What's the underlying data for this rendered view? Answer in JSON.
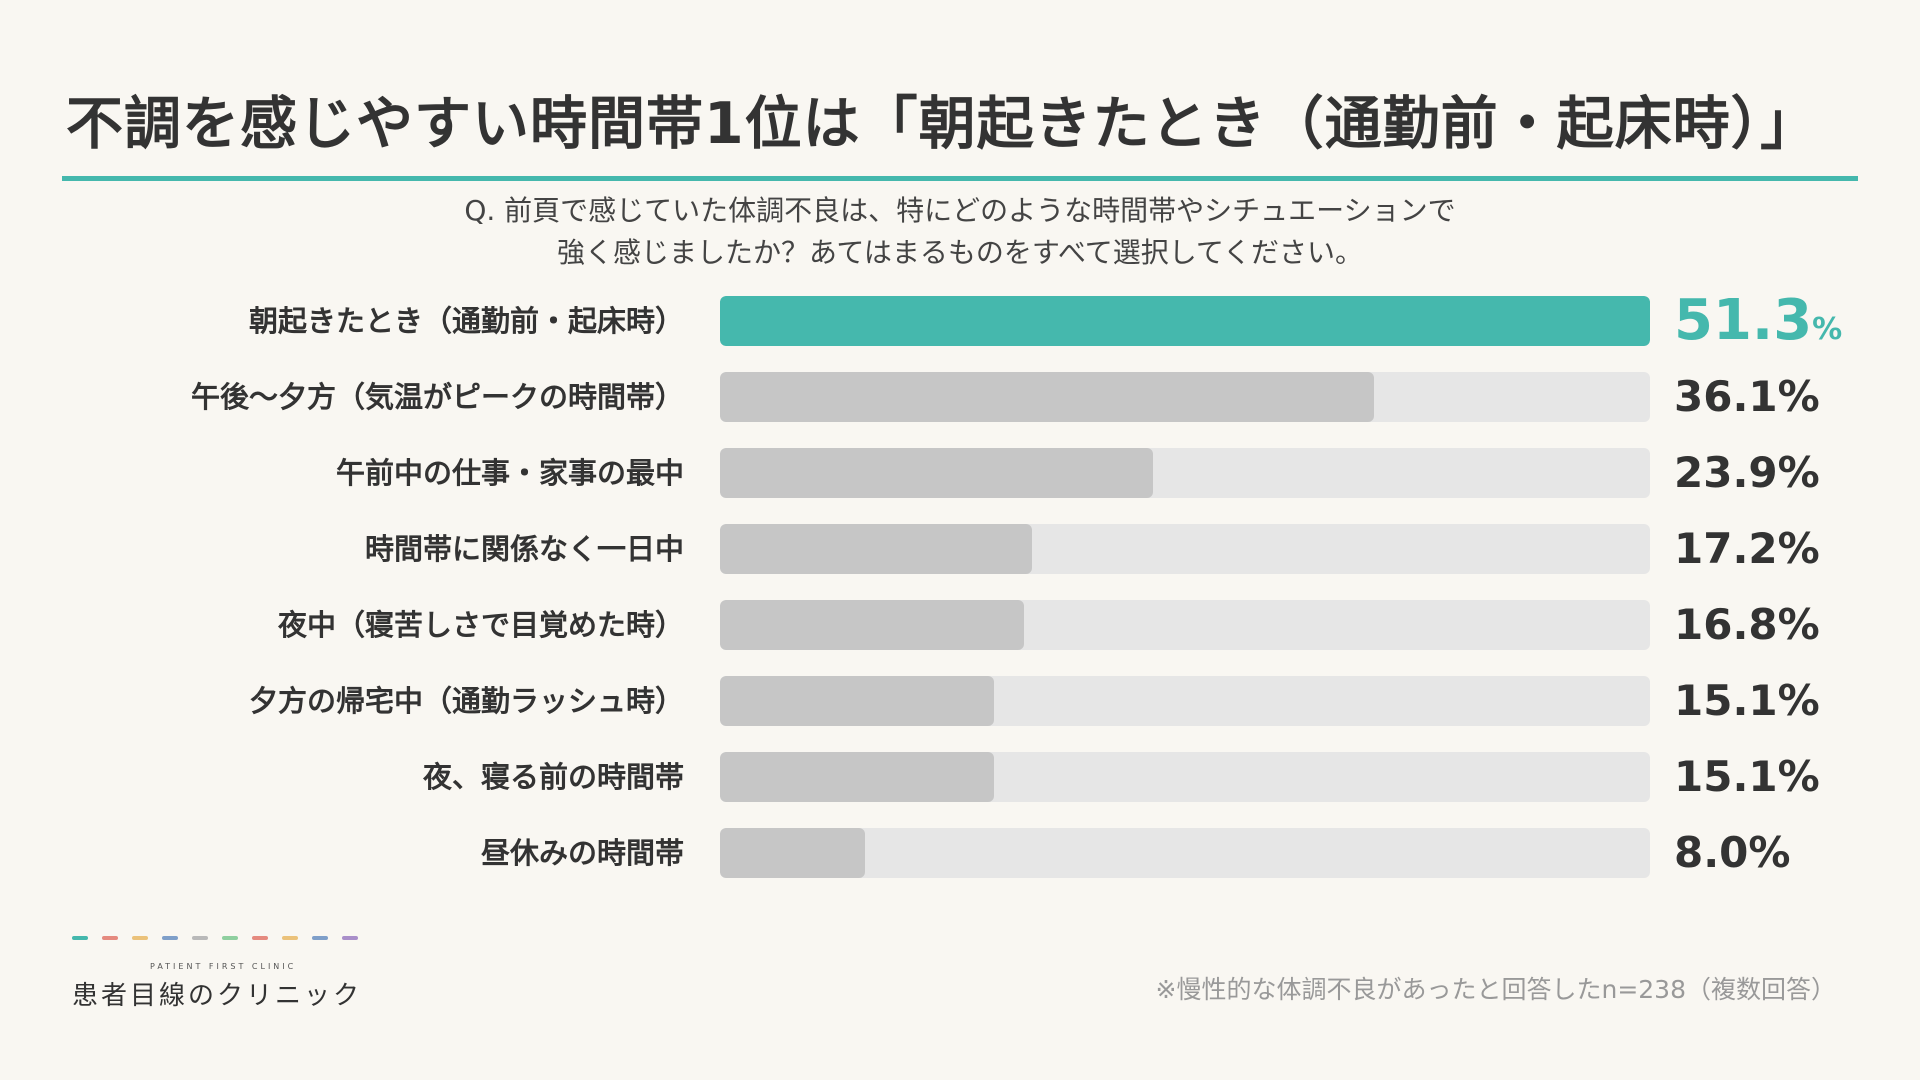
{
  "title": "不調を感じやすい時間帯1位は「朝起きたとき（通勤前・起床時）」",
  "question": {
    "line1": "Q. 前頁で感じていた体調不良は、特にどのような時間帯やシチュエーションで",
    "line2": "強く感じましたか？あてはまるものをすべて選択してください。"
  },
  "colors": {
    "accent": "#45b8ad",
    "bar": "#c6c6c6",
    "track": "#e6e6e6",
    "text": "#333333",
    "background": "#f9f7f2"
  },
  "chart_data": {
    "type": "bar",
    "orientation": "horizontal",
    "unit": "%",
    "xlim": [
      0,
      100
    ],
    "categories": [
      "朝起きたとき（通勤前・起床時）",
      "午後〜夕方（気温がピークの時間帯）",
      "午前中の仕事・家事の最中",
      "時間帯に関係なく一日中",
      "夜中（寝苦しさで目覚めた時）",
      "夕方の帰宅中（通勤ラッシュ時）",
      "夜、寝る前の時間帯",
      "昼休みの時間帯"
    ],
    "values": [
      51.3,
      36.1,
      23.9,
      17.2,
      16.8,
      15.1,
      15.1,
      8.0
    ],
    "value_labels": [
      "51.3",
      "36.1",
      "23.9",
      "17.2",
      "16.8",
      "15.1",
      "15.1",
      "8.0"
    ],
    "highlight_index": 0
  },
  "logo": {
    "subtitle": "PATIENT FIRST CLINIC",
    "name": "患者目線のクリニック",
    "dash_colors": [
      "#45b8ad",
      "#e58a7f",
      "#ebc27a",
      "#7f9fc9",
      "#b9b9b9",
      "#8fcf9f",
      "#e58a7f",
      "#ebc27a",
      "#7f9fc9",
      "#a98fc9"
    ]
  },
  "footnote": "※慢性的な体調不良があったと回答したn=238（複数回答）"
}
